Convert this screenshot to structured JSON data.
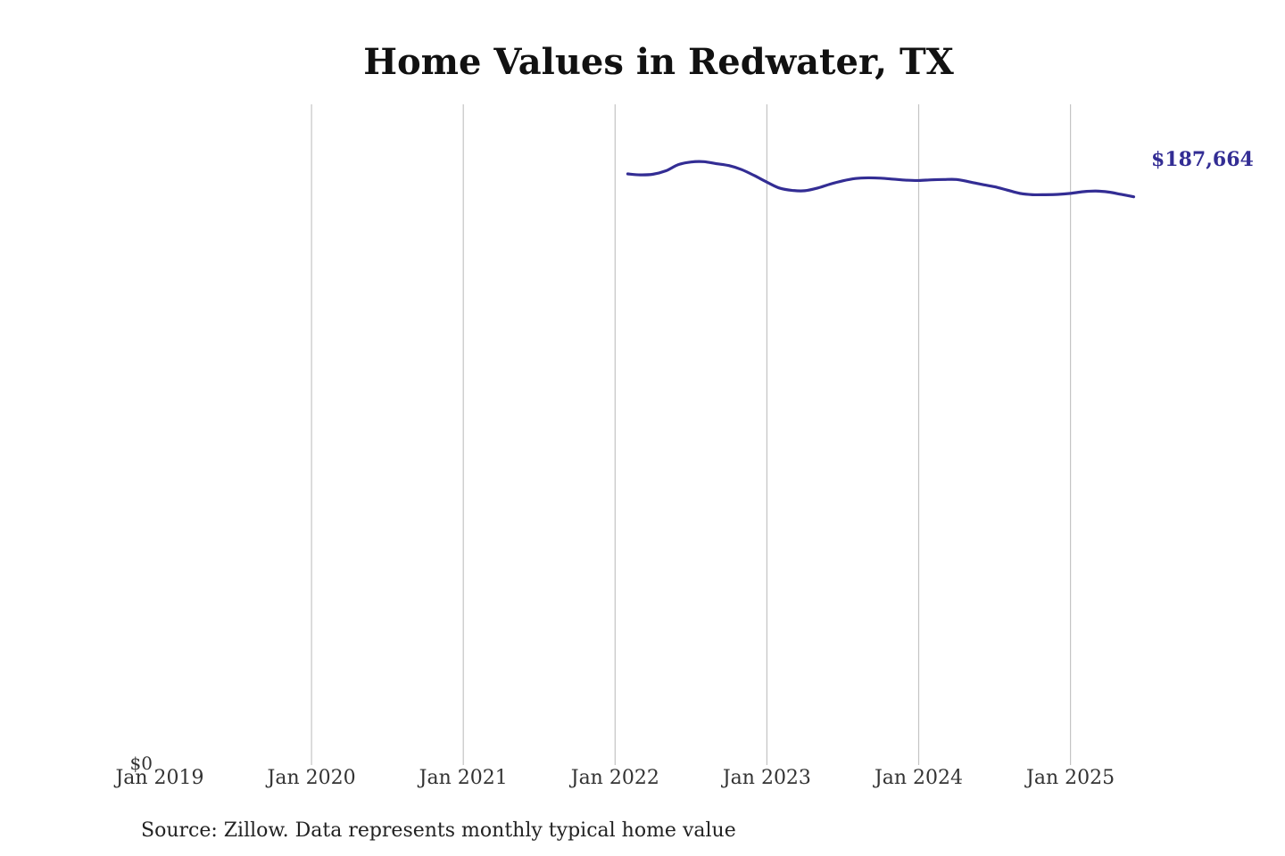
{
  "chart_data": {
    "type": "line",
    "title": "Home Values in Redwater, TX",
    "xlabel": "",
    "ylabel": "",
    "source": "Source: Zillow. Data represents monthly typical home value",
    "x_ticks": [
      "Jan 2019",
      "Jan 2020",
      "Jan 2021",
      "Jan 2022",
      "Jan 2023",
      "Jan 2024",
      "Jan 2025"
    ],
    "y_ticks": [
      {
        "value": 0,
        "label": "$0"
      }
    ],
    "ylim": [
      0,
      200000
    ],
    "grid": "vertical",
    "end_label": "$187,664",
    "series": [
      {
        "color": "#332d94",
        "x": [
          "2022-02",
          "2022-03",
          "2022-04",
          "2022-05",
          "2022-06",
          "2022-07",
          "2022-08",
          "2022-09",
          "2022-10",
          "2022-11",
          "2022-12",
          "2023-01",
          "2023-02",
          "2023-03",
          "2023-04",
          "2023-05",
          "2023-06",
          "2023-07",
          "2023-08",
          "2023-09",
          "2023-10",
          "2023-11",
          "2023-12",
          "2024-01",
          "2024-02",
          "2024-03",
          "2024-04",
          "2024-05",
          "2024-06",
          "2024-07",
          "2024-08",
          "2024-09",
          "2024-10",
          "2024-11",
          "2024-12",
          "2025-01",
          "2025-02",
          "2025-03",
          "2025-04",
          "2025-05",
          "2025-06"
        ],
        "values": [
          194600,
          194300,
          194500,
          195500,
          197400,
          198200,
          198300,
          197700,
          197100,
          195900,
          194100,
          192100,
          190300,
          189600,
          189500,
          190300,
          191500,
          192500,
          193200,
          193400,
          193300,
          193000,
          192700,
          192600,
          192800,
          192900,
          192900,
          192200,
          191400,
          190700,
          189700,
          188700,
          188300,
          188300,
          188400,
          188700,
          189200,
          189400,
          189100,
          188400,
          187664
        ]
      }
    ]
  }
}
